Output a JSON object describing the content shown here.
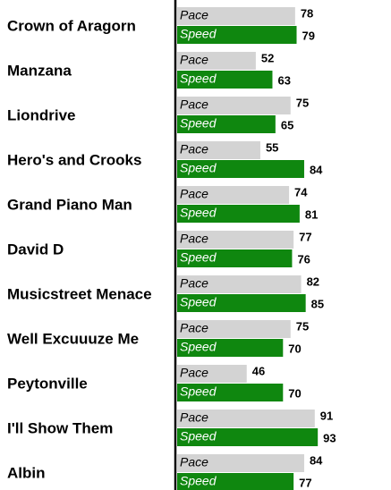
{
  "chart_data": {
    "type": "bar",
    "orientation": "horizontal",
    "categories": [
      "Crown of Aragorn",
      "Manzana",
      "Liondrive",
      "Hero's and Crooks",
      "Grand Piano Man",
      "David D",
      "Musicstreet Menace",
      "Well Excuuuze Me",
      "Peytonville",
      "I'll Show Them",
      "Albin"
    ],
    "series": [
      {
        "name": "Pace",
        "color": "#d3d3d3",
        "values": [
          78,
          52,
          75,
          55,
          74,
          77,
          82,
          75,
          46,
          91,
          84
        ]
      },
      {
        "name": "Speed",
        "color": "#0f870f",
        "values": [
          79,
          63,
          65,
          84,
          81,
          76,
          85,
          70,
          70,
          93,
          77
        ]
      }
    ]
  }
}
